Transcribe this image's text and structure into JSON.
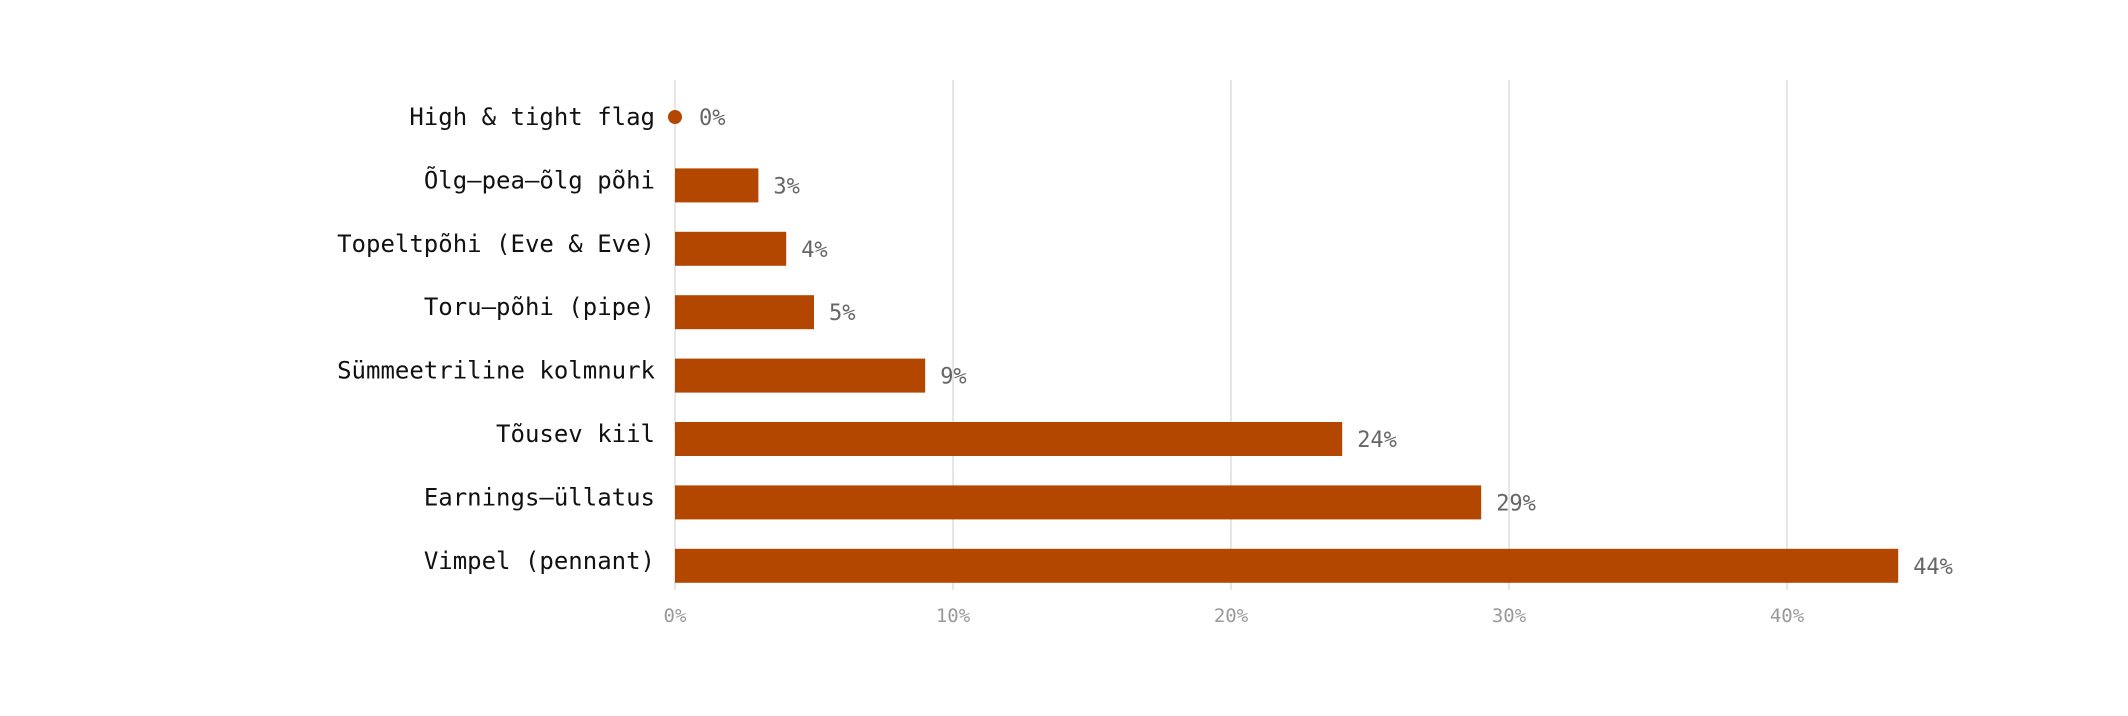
{
  "chart_data": {
    "type": "bar",
    "orientation": "horizontal",
    "categories": [
      "High & tight flag",
      "Õlg–pea–õlg põhi",
      "Topeltpõhi (Eve & Eve)",
      "Toru–põhi (pipe)",
      "Sümmeetriline kolmnurk",
      "Tõusev kiil",
      "Earnings–üllatus",
      "Vimpel (pennant)"
    ],
    "values": [
      0,
      3,
      4,
      5,
      9,
      24,
      29,
      44
    ],
    "value_labels": [
      "0%",
      "3%",
      "4%",
      "5%",
      "9%",
      "24%",
      "29%",
      "44%"
    ],
    "xticks": [
      0,
      10,
      20,
      30,
      40
    ],
    "xtick_labels": [
      "0%",
      "10%",
      "20%",
      "30%",
      "40%"
    ],
    "xlim": [
      0,
      44
    ],
    "grid": "vertical",
    "legend": "none",
    "title": "",
    "xlabel": "",
    "ylabel": "",
    "colors": {
      "bar": "#b34700",
      "grid": "#e6e6e6",
      "value_label": "#666666",
      "tick_label": "#999999"
    }
  }
}
